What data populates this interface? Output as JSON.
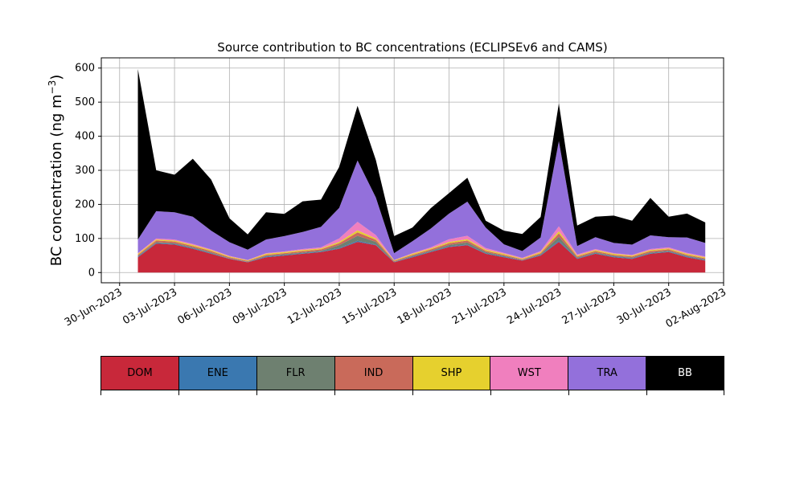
{
  "chart_data": {
    "type": "area",
    "stacked": true,
    "title": "Source contribution to BC concentrations (ECLIPSEv6 and CAMS)",
    "ylabel": "BC concentration (ng m",
    "ylabel_sup": "−3",
    "ylabel_close": ")",
    "xlabel": "",
    "ylim": [
      -30,
      630
    ],
    "xlim": [
      "2023-06-29",
      "2023-08-02"
    ],
    "grid": true,
    "y_ticks": [
      0,
      100,
      200,
      300,
      400,
      500,
      600
    ],
    "x_ticks": [
      "30-Jun-2023",
      "03-Jul-2023",
      "06-Jul-2023",
      "09-Jul-2023",
      "12-Jul-2023",
      "15-Jul-2023",
      "18-Jul-2023",
      "21-Jul-2023",
      "24-Jul-2023",
      "27-Jul-2023",
      "30-Jul-2023",
      "02-Aug-2023"
    ],
    "x_tick_dates": [
      "2023-06-30",
      "2023-07-03",
      "2023-07-06",
      "2023-07-09",
      "2023-07-12",
      "2023-07-15",
      "2023-07-18",
      "2023-07-21",
      "2023-07-24",
      "2023-07-27",
      "2023-07-30",
      "2023-08-02"
    ],
    "x_dates": [
      "2023-07-01",
      "2023-07-02",
      "2023-07-03",
      "2023-07-04",
      "2023-07-05",
      "2023-07-06",
      "2023-07-07",
      "2023-07-08",
      "2023-07-09",
      "2023-07-10",
      "2023-07-11",
      "2023-07-12",
      "2023-07-13",
      "2023-07-14",
      "2023-07-15",
      "2023-07-16",
      "2023-07-17",
      "2023-07-18",
      "2023-07-19",
      "2023-07-20",
      "2023-07-21",
      "2023-07-22",
      "2023-07-23",
      "2023-07-24",
      "2023-07-25",
      "2023-07-26",
      "2023-07-27",
      "2023-07-28",
      "2023-07-29",
      "2023-07-30",
      "2023-07-31",
      "2023-08-01"
    ],
    "series": [
      {
        "name": "DOM",
        "color": "#c8283a",
        "values": [
          45,
          85,
          82,
          70,
          55,
          40,
          30,
          45,
          50,
          55,
          60,
          70,
          90,
          80,
          30,
          45,
          60,
          75,
          80,
          55,
          45,
          35,
          50,
          90,
          40,
          55,
          45,
          40,
          55,
          60,
          45,
          35
        ]
      },
      {
        "name": "ENE",
        "color": "#3a78b0",
        "values": [
          2,
          2,
          2,
          2,
          2,
          1,
          1,
          2,
          2,
          2,
          2,
          2,
          3,
          2,
          1,
          2,
          2,
          2,
          2,
          2,
          2,
          1,
          2,
          3,
          2,
          2,
          2,
          2,
          2,
          2,
          2,
          2
        ]
      },
      {
        "name": "FLR",
        "color": "#6e8070",
        "values": [
          2,
          2,
          2,
          2,
          2,
          1,
          1,
          2,
          2,
          2,
          2,
          8,
          15,
          8,
          1,
          2,
          2,
          4,
          6,
          3,
          2,
          1,
          2,
          12,
          2,
          2,
          2,
          2,
          2,
          2,
          2,
          2
        ]
      },
      {
        "name": "IND",
        "color": "#c96a5a",
        "values": [
          3,
          5,
          5,
          4,
          4,
          3,
          2,
          3,
          3,
          4,
          4,
          6,
          10,
          6,
          2,
          3,
          4,
          5,
          6,
          4,
          3,
          2,
          3,
          10,
          3,
          4,
          3,
          3,
          4,
          4,
          3,
          3
        ]
      },
      {
        "name": "SHP",
        "color": "#e6d02e",
        "values": [
          3,
          3,
          3,
          3,
          3,
          2,
          2,
          3,
          3,
          3,
          3,
          4,
          6,
          4,
          2,
          3,
          3,
          4,
          4,
          3,
          3,
          2,
          3,
          6,
          3,
          3,
          3,
          3,
          3,
          3,
          3,
          3
        ]
      },
      {
        "name": "WST",
        "color": "#f07fbe",
        "values": [
          2,
          3,
          3,
          3,
          2,
          2,
          1,
          2,
          2,
          3,
          3,
          10,
          25,
          10,
          1,
          2,
          3,
          8,
          10,
          5,
          3,
          2,
          3,
          15,
          3,
          3,
          2,
          2,
          3,
          3,
          3,
          2
        ]
      },
      {
        "name": "TRA",
        "color": "#9370db",
        "values": [
          40,
          80,
          80,
          80,
          55,
          40,
          30,
          40,
          45,
          50,
          60,
          90,
          180,
          110,
          20,
          35,
          55,
          75,
          100,
          60,
          25,
          20,
          40,
          250,
          25,
          35,
          30,
          30,
          40,
          30,
          45,
          40
        ]
      },
      {
        "name": "BB",
        "color": "#000000",
        "values": [
          500,
          120,
          110,
          170,
          150,
          70,
          45,
          80,
          65,
          90,
          80,
          120,
          160,
          110,
          50,
          40,
          60,
          60,
          70,
          20,
          40,
          50,
          60,
          110,
          60,
          60,
          80,
          70,
          110,
          60,
          70,
          60
        ]
      }
    ]
  },
  "legend": {
    "items": [
      {
        "label": "DOM",
        "color": "#c8283a",
        "text_color": "#000000"
      },
      {
        "label": "ENE",
        "color": "#3a78b0",
        "text_color": "#000000"
      },
      {
        "label": "FLR",
        "color": "#6e8070",
        "text_color": "#000000"
      },
      {
        "label": "IND",
        "color": "#c96a5a",
        "text_color": "#000000"
      },
      {
        "label": "SHP",
        "color": "#e6d02e",
        "text_color": "#000000"
      },
      {
        "label": "WST",
        "color": "#f07fbe",
        "text_color": "#000000"
      },
      {
        "label": "TRA",
        "color": "#9370db",
        "text_color": "#000000"
      },
      {
        "label": "BB",
        "color": "#000000",
        "text_color": "#ffffff"
      }
    ]
  }
}
